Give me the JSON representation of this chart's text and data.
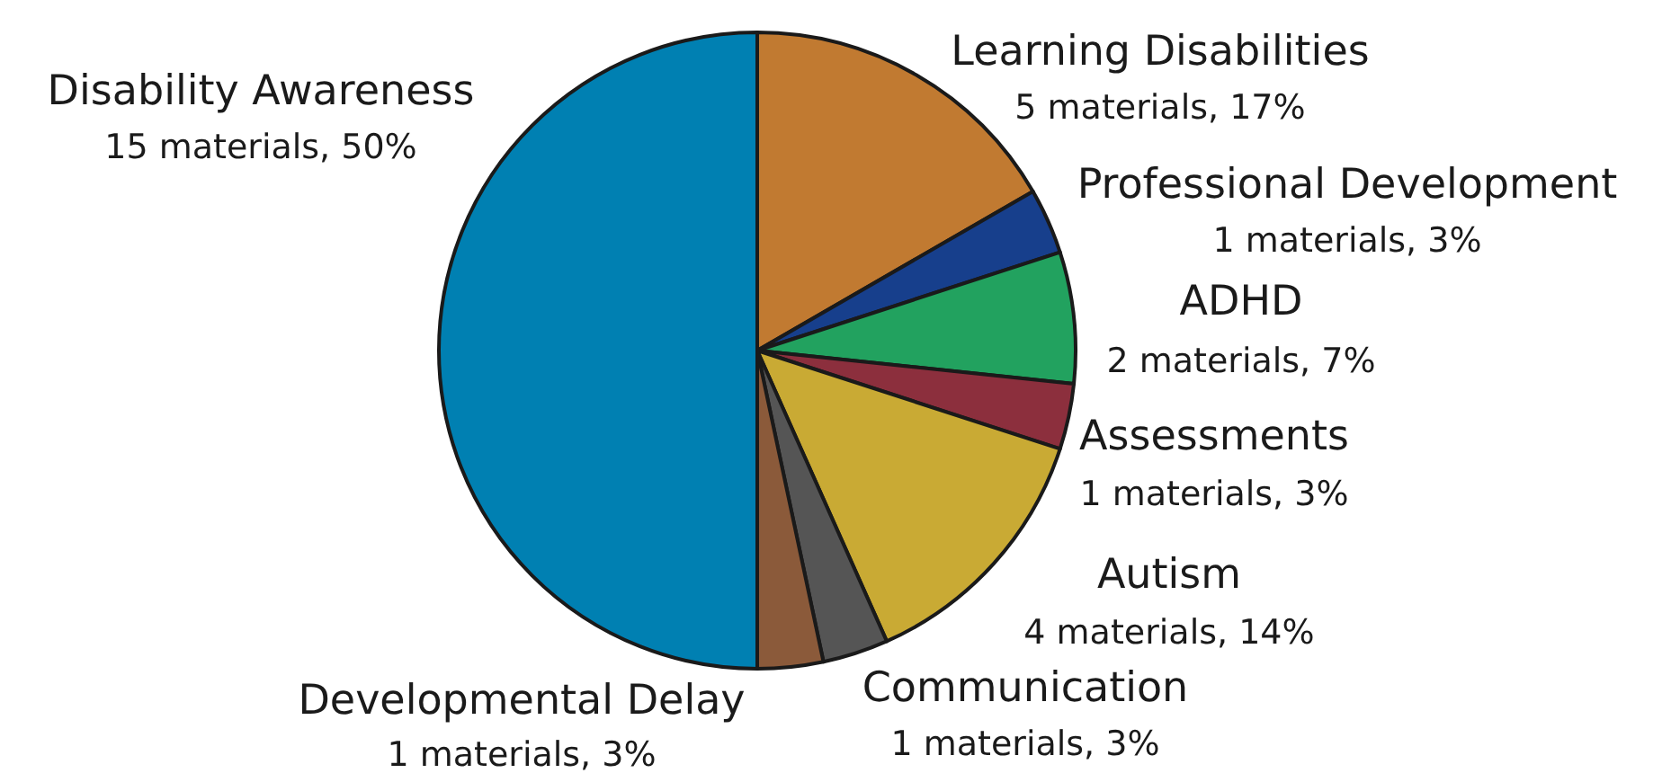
{
  "chart_data": {
    "type": "pie",
    "categories": [
      "Learning Disabilities",
      "Professional Development",
      "ADHD",
      "Assessments",
      "Autism",
      "Communication",
      "Developmental Delay",
      "Disability Awareness"
    ],
    "values": [
      5,
      1,
      2,
      1,
      4,
      1,
      1,
      15
    ],
    "value_labels": [
      "5 materials, 17%",
      "1 materials, 3%",
      "2 materials, 7%",
      "1 materials, 3%",
      "4 materials, 14%",
      "1 materials, 3%",
      "1 materials, 3%",
      "15 materials, 50%"
    ],
    "colors": [
      "#c17a31",
      "#173f8c",
      "#22a25f",
      "#8c2f3d",
      "#c9aa34",
      "#555555",
      "#8b5a3a",
      "#0080b2"
    ]
  }
}
